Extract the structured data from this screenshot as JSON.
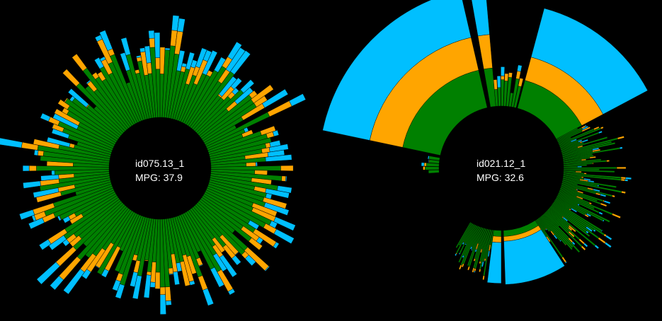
{
  "colors": {
    "background": "#000000",
    "inner_segment": "#008000",
    "middle_segment": "#FFA500",
    "outer_segment": "#00BFFF",
    "label_text": "#FFFFFF"
  },
  "chart_data": [
    {
      "type": "radial-stacked-bar",
      "center_label": "id075.13_1",
      "center_value": "MPG: 37.9",
      "grid": false,
      "legend": "none",
      "segment_order": [
        "inner_segment",
        "middle_segment",
        "outer_segment"
      ],
      "bar_count": 150,
      "start_angle_deg": 0,
      "inner_radius_relative": 0.4,
      "stack_ranges_relative": {
        "inner_segment": [
          0.35,
          0.75
        ],
        "middle_segment": [
          0.0,
          0.3
        ],
        "outer_segment": [
          0.0,
          0.28
        ]
      },
      "sample_bars": [
        {
          "angle_deg": 0,
          "inner_segment": 0.62,
          "middle_segment": 0.26,
          "outer_segment": 0.12
        },
        {
          "angle_deg": 15,
          "inner_segment": 0.55,
          "middle_segment": 0.18,
          "outer_segment": 0.1
        },
        {
          "angle_deg": 45,
          "inner_segment": 0.48,
          "middle_segment": 0.2,
          "outer_segment": 0.14
        },
        {
          "angle_deg": 90,
          "inner_segment": 0.58,
          "middle_segment": 0.08,
          "outer_segment": 0.22
        },
        {
          "angle_deg": 135,
          "inner_segment": 0.5,
          "middle_segment": 0.16,
          "outer_segment": 0.1
        },
        {
          "angle_deg": 180,
          "inner_segment": 0.52,
          "middle_segment": 0.1,
          "outer_segment": 0.12
        },
        {
          "angle_deg": 225,
          "inner_segment": 0.56,
          "middle_segment": 0.18,
          "outer_segment": 0.1
        },
        {
          "angle_deg": 270,
          "inner_segment": 0.6,
          "middle_segment": 0.12,
          "outer_segment": 0.16
        },
        {
          "angle_deg": 315,
          "inner_segment": 0.5,
          "middle_segment": 0.14,
          "outer_segment": 0.18
        }
      ],
      "seed": 7
    },
    {
      "type": "radial-stacked-bar",
      "center_label": "id021.12_1",
      "center_value": "MPG: 32.6",
      "grid": false,
      "legend": "none",
      "segment_order": [
        "inner_segment",
        "middle_segment",
        "outer_segment"
      ],
      "inner_radius_relative": 0.4,
      "wide_bars": [
        {
          "start_deg": 282,
          "end_deg": 347,
          "inner_segment": 0.32,
          "middle_segment": 0.28,
          "outer_segment": 0.4
        },
        {
          "start_deg": 350,
          "end_deg": 355,
          "inner_segment": 0.32,
          "middle_segment": 0.28,
          "outer_segment": 0.43
        },
        {
          "start_deg": 15,
          "end_deg": 62,
          "inner_segment": 0.24,
          "middle_segment": 0.2,
          "outer_segment": 0.42
        },
        {
          "start_deg": 147,
          "end_deg": 178,
          "inner_segment": 0.05,
          "middle_segment": 0.04,
          "outer_segment": 0.36
        },
        {
          "start_deg": 180,
          "end_deg": 187,
          "inner_segment": 0.05,
          "middle_segment": 0.05,
          "outer_segment": 0.34
        }
      ],
      "dense_regions": [
        {
          "start_deg": 62,
          "end_deg": 147,
          "count": 90,
          "inner_segment": [
            0.1,
            0.5
          ],
          "middle_segment": [
            0.0,
            0.08
          ],
          "outer_segment": [
            0.0,
            0.06
          ]
        },
        {
          "start_deg": 187,
          "end_deg": 210,
          "count": 26,
          "inner_segment": [
            0.1,
            0.42
          ],
          "middle_segment": [
            0.0,
            0.06
          ],
          "outer_segment": [
            0.0,
            0.05
          ]
        },
        {
          "start_deg": 266,
          "end_deg": 280,
          "count": 5,
          "inner_segment": [
            0.05,
            0.12
          ],
          "middle_segment": [
            0.0,
            0.02
          ],
          "outer_segment": [
            0.0,
            0.03
          ]
        },
        {
          "start_deg": 355,
          "end_deg": 14,
          "count": 8,
          "inner_segment": [
            0.1,
            0.25
          ],
          "middle_segment": [
            0.02,
            0.1
          ],
          "outer_segment": [
            0.04,
            0.18
          ]
        }
      ],
      "seed": 21
    }
  ]
}
